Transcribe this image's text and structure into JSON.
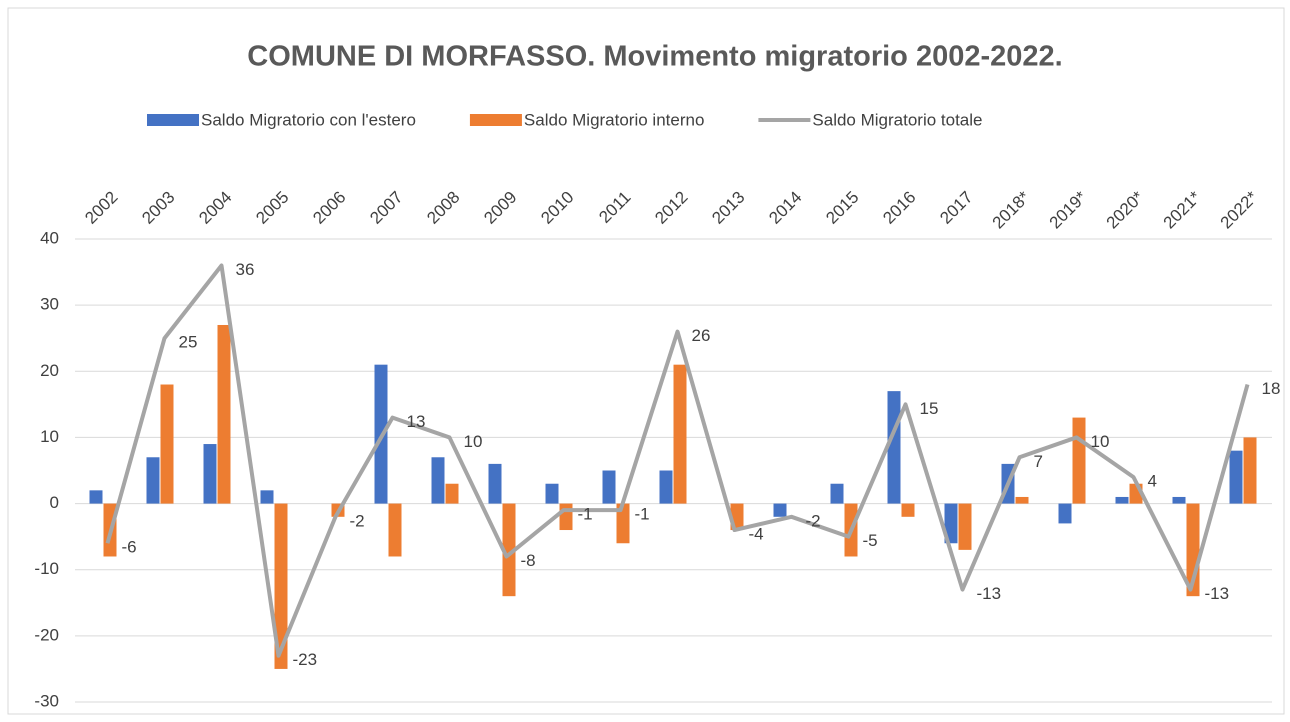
{
  "chart_data": {
    "type": "bar-line",
    "title": "COMUNE DI MORFASSO. Movimento migratorio 2002-2022.",
    "categories": [
      "2002",
      "2003",
      "2004",
      "2005",
      "2006",
      "2007",
      "2008",
      "2009",
      "2010",
      "2011",
      "2012",
      "2013",
      "2014",
      "2015",
      "2016",
      "2017",
      "2018*",
      "2019*",
      "2020*",
      "2021*",
      "2022*"
    ],
    "series": [
      {
        "name": "Saldo Migratorio con l'estero",
        "color": "#4472c4",
        "kind": "bar",
        "values": [
          2,
          7,
          9,
          2,
          0,
          21,
          7,
          6,
          3,
          5,
          5,
          0,
          -2,
          3,
          17,
          -6,
          6,
          -3,
          1,
          1,
          8
        ]
      },
      {
        "name": "Saldo Migratorio interno",
        "color": "#ed7d31",
        "kind": "bar",
        "values": [
          -8,
          18,
          27,
          -25,
          -2,
          -8,
          3,
          -14,
          -4,
          -6,
          21,
          -4,
          0,
          -8,
          -2,
          -7,
          1,
          13,
          3,
          -14,
          10
        ]
      },
      {
        "name": "Saldo Migratorio totale",
        "color": "#a5a5a5",
        "kind": "line",
        "values": [
          -6,
          25,
          36,
          -23,
          -2,
          13,
          10,
          -8,
          -1,
          -1,
          26,
          -4,
          -2,
          -5,
          15,
          -13,
          7,
          10,
          4,
          -13,
          18
        ]
      }
    ],
    "ylim": [
      -30,
      40
    ],
    "yticks": [
      -30,
      -20,
      -10,
      0,
      10,
      20,
      30,
      40
    ],
    "grid": true,
    "legend": "top"
  }
}
